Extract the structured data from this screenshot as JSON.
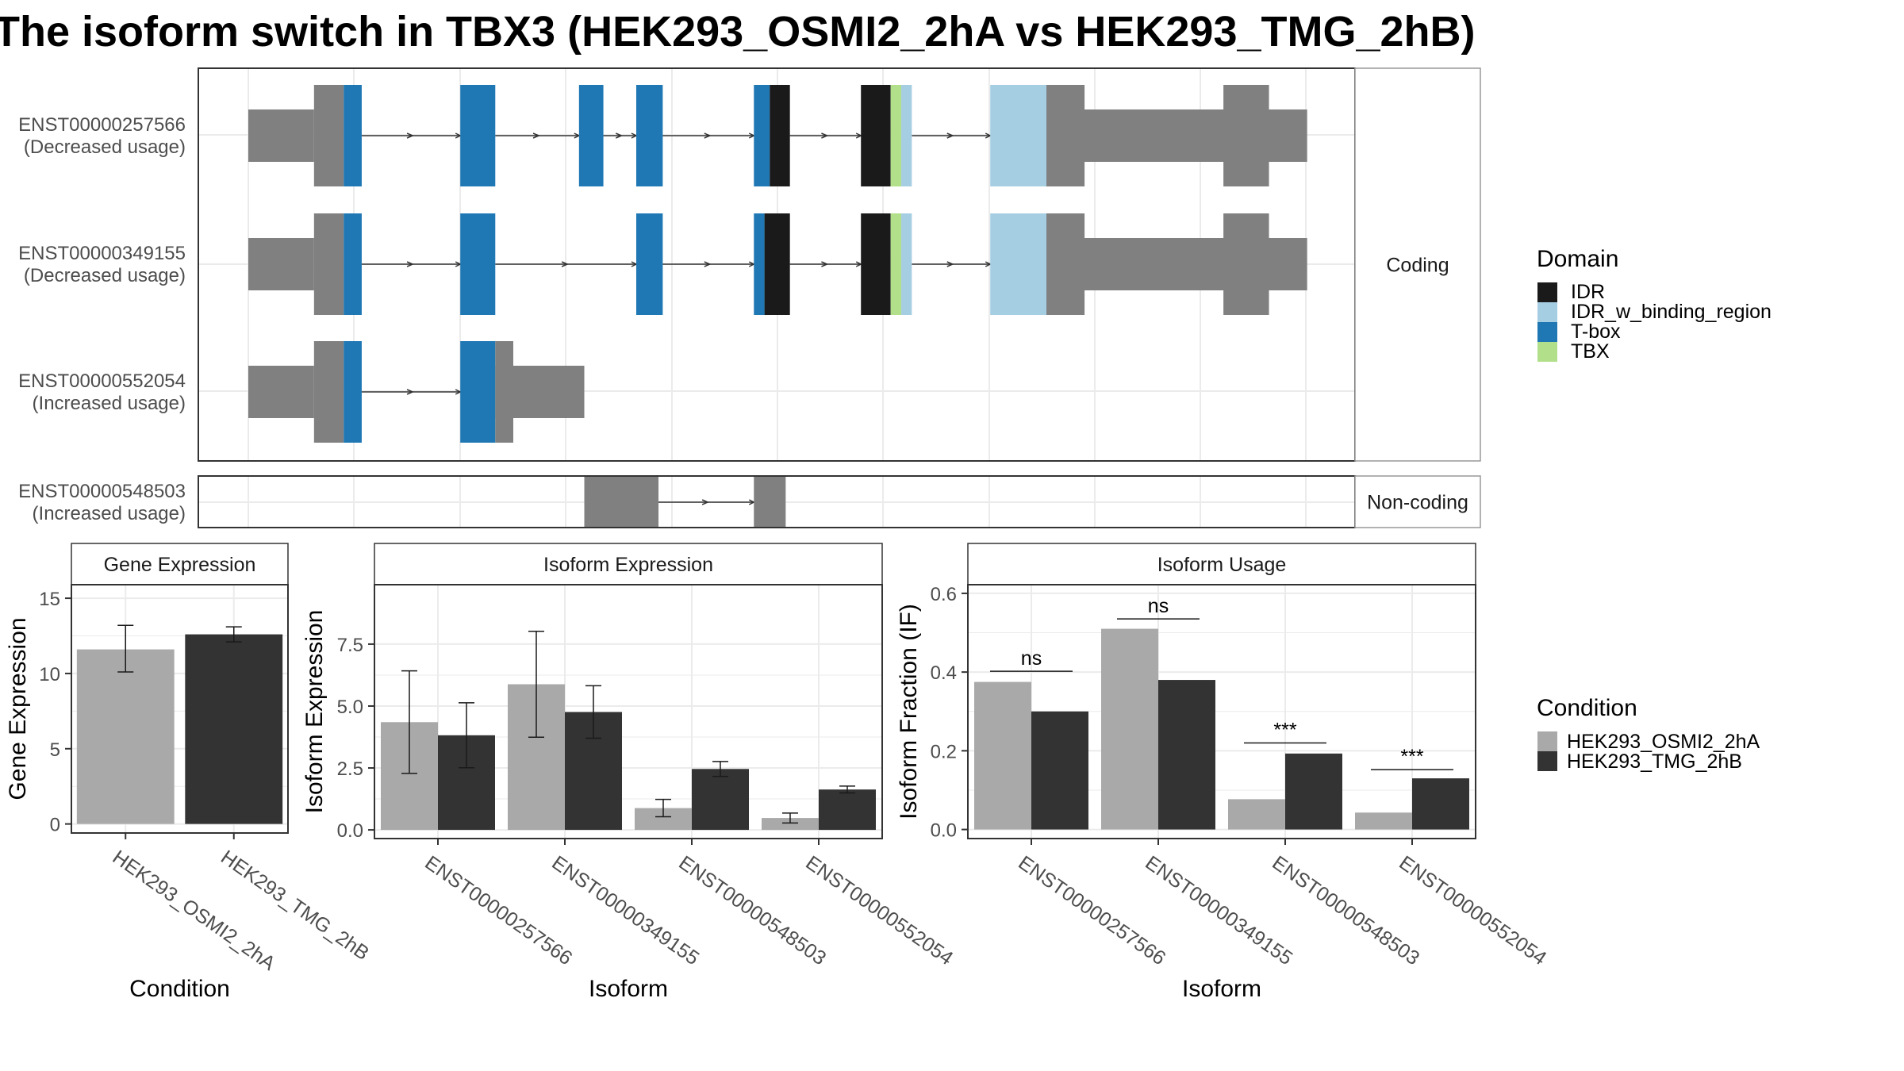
{
  "title": "The isoform switch in TBX3 (HEK293_OSMI2_2hA vs HEK293_TMG_2hB)",
  "colors": {
    "exon": "#808080",
    "IDR": "#1a1a1a",
    "IDR_w_binding_region": "#a6cee3",
    "T-box": "#1f78b4",
    "TBX": "#b2df8a",
    "cond1": "#a9a9a9",
    "cond2": "#333333",
    "grid": "#ebebeb",
    "strip_bg": "#ffffff",
    "panel_border": "#333333"
  },
  "structure": {
    "facet_coding": "Coding",
    "facet_noncoding": "Non-coding",
    "isoforms": [
      {
        "id": "ENST00000257566",
        "usage": "(Decreased usage)",
        "group": "coding",
        "utr": [
          [
            0,
            62
          ],
          [
            760,
            999
          ]
        ],
        "segments": [
          [
            62,
            90,
            "exon"
          ],
          [
            90,
            107,
            "T-box"
          ],
          [
            200,
            233,
            "T-box"
          ],
          [
            312,
            335,
            "T-box"
          ],
          [
            366,
            391,
            "T-box"
          ],
          [
            477,
            492,
            "T-box"
          ],
          [
            492,
            511,
            "IDR"
          ],
          [
            578,
            606,
            "IDR"
          ],
          [
            606,
            616,
            "TBX"
          ],
          [
            616,
            626,
            "IDR_w_binding_region"
          ],
          [
            700,
            753,
            "IDR_w_binding_region"
          ],
          [
            753,
            789,
            "exon"
          ],
          [
            920,
            963,
            "exon"
          ]
        ],
        "introns": [
          [
            107,
            200
          ],
          [
            233,
            312
          ],
          [
            335,
            366
          ],
          [
            391,
            477
          ],
          [
            511,
            578
          ],
          [
            626,
            700
          ],
          [
            789,
            920
          ]
        ]
      },
      {
        "id": "ENST00000349155",
        "usage": "(Decreased usage)",
        "group": "coding",
        "utr": [
          [
            0,
            62
          ],
          [
            760,
            999
          ]
        ],
        "segments": [
          [
            62,
            90,
            "exon"
          ],
          [
            90,
            107,
            "T-box"
          ],
          [
            200,
            233,
            "T-box"
          ],
          [
            366,
            391,
            "T-box"
          ],
          [
            477,
            487,
            "T-box"
          ],
          [
            487,
            511,
            "IDR"
          ],
          [
            578,
            606,
            "IDR"
          ],
          [
            606,
            616,
            "TBX"
          ],
          [
            616,
            626,
            "IDR_w_binding_region"
          ],
          [
            700,
            753,
            "IDR_w_binding_region"
          ],
          [
            753,
            789,
            "exon"
          ],
          [
            920,
            963,
            "exon"
          ]
        ],
        "introns": [
          [
            107,
            200
          ],
          [
            233,
            366
          ],
          [
            391,
            477
          ],
          [
            511,
            578
          ],
          [
            626,
            700
          ],
          [
            789,
            920
          ]
        ]
      },
      {
        "id": "ENST00000552054",
        "usage": "(Increased usage)",
        "group": "coding",
        "utr": [
          [
            0,
            62
          ],
          [
            233,
            317
          ]
        ],
        "segments": [
          [
            62,
            90,
            "exon"
          ],
          [
            90,
            107,
            "T-box"
          ],
          [
            200,
            233,
            "T-box"
          ],
          [
            233,
            250,
            "exon"
          ]
        ],
        "introns": [
          [
            107,
            200
          ]
        ]
      },
      {
        "id": "ENST00000548503",
        "usage": "(Increased usage)",
        "group": "noncoding",
        "utr": [],
        "segments": [
          [
            317,
            387,
            "exon"
          ],
          [
            477,
            507,
            "exon"
          ]
        ],
        "introns": [
          [
            387,
            477
          ]
        ]
      }
    ]
  },
  "legends": {
    "domain_title": "Domain",
    "domain_items": [
      {
        "label": "IDR",
        "color": "#1a1a1a"
      },
      {
        "label": "IDR_w_binding_region",
        "color": "#a6cee3"
      },
      {
        "label": "T-box",
        "color": "#1f78b4"
      },
      {
        "label": "TBX",
        "color": "#b2df8a"
      }
    ],
    "condition_title": "Condition",
    "condition_items": [
      {
        "label": "HEK293_OSMI2_2hA",
        "color": "#a9a9a9"
      },
      {
        "label": "HEK293_TMG_2hB",
        "color": "#333333"
      }
    ]
  },
  "chart_data": [
    {
      "type": "bar",
      "strip": "Gene Expression",
      "xlabel": "Condition",
      "ylabel": "Gene Expression",
      "categories": [
        "HEK293_OSMI2_2hA",
        "HEK293_TMG_2hB"
      ],
      "values": [
        11.6,
        12.6
      ],
      "errors": [
        [
          10.1,
          13.2
        ],
        [
          12.1,
          13.1
        ]
      ],
      "ylim": [
        -0.6,
        15.9
      ],
      "yticks": [
        0,
        5,
        10,
        15
      ],
      "ytick_labels": [
        "0",
        "5",
        "10",
        "15"
      ]
    },
    {
      "type": "bar",
      "strip": "Isoform Expression",
      "xlabel": "Isoform",
      "ylabel": "Isoform Expression",
      "categories": [
        "ENST00000257566",
        "ENST00000349155",
        "ENST00000548503",
        "ENST00000552054"
      ],
      "series": [
        {
          "name": "HEK293_OSMI2_2hA",
          "values": [
            4.35,
            5.88,
            0.88,
            0.48
          ],
          "errors": [
            [
              2.28,
              6.42
            ],
            [
              3.74,
              8.02
            ],
            [
              0.53,
              1.23
            ],
            [
              0.28,
              0.68
            ]
          ]
        },
        {
          "name": "HEK293_TMG_2hB",
          "values": [
            3.82,
            4.76,
            2.46,
            1.63
          ],
          "errors": [
            [
              2.51,
              5.13
            ],
            [
              3.7,
              5.82
            ],
            [
              2.16,
              2.76
            ],
            [
              1.49,
              1.77
            ]
          ]
        }
      ],
      "ylim": [
        -0.35,
        9.9
      ],
      "yticks": [
        0,
        2.5,
        5,
        7.5
      ],
      "ytick_labels": [
        "0.0",
        "2.5",
        "5.0",
        "7.5"
      ]
    },
    {
      "type": "bar",
      "strip": "Isoform Usage",
      "xlabel": "Isoform",
      "ylabel": "Isoform Fraction (IF)",
      "categories": [
        "ENST00000257566",
        "ENST00000349155",
        "ENST00000548503",
        "ENST00000552054"
      ],
      "series": [
        {
          "name": "HEK293_OSMI2_2hA",
          "values": [
            0.375,
            0.51,
            0.077,
            0.043
          ]
        },
        {
          "name": "HEK293_TMG_2hB",
          "values": [
            0.3,
            0.38,
            0.193,
            0.13
          ]
        }
      ],
      "significance": [
        {
          "label": "ns",
          "y": 0.402
        },
        {
          "label": "ns",
          "y": 0.535
        },
        {
          "label": "***",
          "y": 0.22
        },
        {
          "label": "***",
          "y": 0.152
        }
      ],
      "ylim": [
        -0.023,
        0.622
      ],
      "yticks": [
        0,
        0.2,
        0.4,
        0.6
      ],
      "ytick_labels": [
        "0.0",
        "0.2",
        "0.4",
        "0.6"
      ]
    }
  ]
}
